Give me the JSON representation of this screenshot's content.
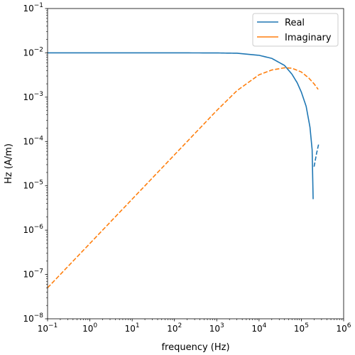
{
  "chart_data": {
    "type": "line",
    "xlabel": "frequency (Hz)",
    "ylabel": "Hz (A/m)",
    "xscale": "log",
    "yscale": "log",
    "xlim": [
      0.1,
      1000000
    ],
    "ylim": [
      1e-08,
      0.1
    ],
    "grid": false,
    "legend_position": "top-right",
    "x_ticks": [
      0.1,
      1,
      10,
      100,
      1000,
      10000,
      100000,
      1000000
    ],
    "x_tick_labels": [
      {
        "base": "10",
        "exp": "−1"
      },
      {
        "base": "10",
        "exp": "0"
      },
      {
        "base": "10",
        "exp": "1"
      },
      {
        "base": "10",
        "exp": "2"
      },
      {
        "base": "10",
        "exp": "3"
      },
      {
        "base": "10",
        "exp": "4"
      },
      {
        "base": "10",
        "exp": "5"
      },
      {
        "base": "10",
        "exp": "6"
      }
    ],
    "y_ticks": [
      1e-08,
      1e-07,
      1e-06,
      1e-05,
      0.0001,
      0.001,
      0.01,
      0.1
    ],
    "y_tick_labels": [
      {
        "base": "10",
        "exp": "−8"
      },
      {
        "base": "10",
        "exp": "−7"
      },
      {
        "base": "10",
        "exp": "−6"
      },
      {
        "base": "10",
        "exp": "−5"
      },
      {
        "base": "10",
        "exp": "−4"
      },
      {
        "base": "10",
        "exp": "−3"
      },
      {
        "base": "10",
        "exp": "−2"
      },
      {
        "base": "10",
        "exp": "−1"
      }
    ],
    "series": [
      {
        "name": "Real",
        "color": "#1f77b4",
        "style": "solid",
        "x": [
          0.1,
          1,
          10,
          100,
          1000,
          3000,
          10000,
          20000,
          40000,
          60000,
          80000,
          100000,
          130000,
          160000,
          180000,
          190000
        ],
        "y": [
          0.01,
          0.01,
          0.01,
          0.01,
          0.00995,
          0.0098,
          0.0088,
          0.0075,
          0.0052,
          0.0033,
          0.0021,
          0.0013,
          0.00062,
          0.00021,
          6.5e-05,
          5e-06
        ]
      },
      {
        "name": "",
        "color": "#1f77b4",
        "style": "dashed",
        "x": [
          200000,
          230000,
          260000
        ],
        "y": [
          2.7e-05,
          5.5e-05,
          9.25e-05
        ]
      },
      {
        "name": "Imaginary",
        "color": "#ff7f0e",
        "style": "dashed",
        "x": [
          0.1,
          1,
          10,
          100,
          1000,
          3000,
          10000,
          20000,
          40000,
          60000,
          100000,
          150000,
          200000,
          250000
        ],
        "y": [
          5e-08,
          5e-07,
          5e-06,
          5e-05,
          0.0005,
          0.0014,
          0.0032,
          0.0041,
          0.0046,
          0.0045,
          0.0037,
          0.0027,
          0.002,
          0.0015
        ]
      }
    ],
    "legend": [
      {
        "label": "Real",
        "color": "#1f77b4"
      },
      {
        "label": "Imaginary",
        "color": "#ff7f0e"
      }
    ]
  }
}
